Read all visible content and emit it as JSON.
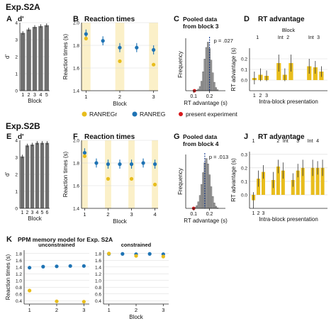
{
  "figure": {
    "exp_a": "Exp.S2A",
    "exp_b": "Exp.S2B",
    "legend_gold": "RANREGr",
    "legend_blue": "RANREG",
    "legend_red": "present experiment",
    "colors": {
      "gold": "#e8bd1c",
      "blue": "#1e73b4",
      "red": "#d7191c",
      "shade": "#fbf0c8",
      "bar_dark": "#6f6f6f",
      "hist": "#9a9a9a"
    }
  },
  "chart_data": [
    {
      "id": "A",
      "panel_label": "A",
      "type": "bar",
      "title": "d'",
      "ylabel": "d'",
      "xlabel": "Block",
      "categories": [
        "1",
        "2",
        "3",
        "4",
        "5"
      ],
      "values": [
        3.4,
        3.6,
        3.75,
        3.8,
        3.85
      ],
      "ylim": [
        0,
        4
      ],
      "yticks": [
        "0",
        "1",
        "2",
        "3",
        "4"
      ]
    },
    {
      "id": "B",
      "panel_label": "B",
      "type": "scatter",
      "title": "Reaction times",
      "ylabel": "Reaction times (s)",
      "xlabel": "Block",
      "xlim": [
        0.6,
        7.4
      ],
      "ylim": [
        1.4,
        2.0
      ],
      "xticks": [
        {
          "x": 1,
          "label": "1"
        },
        {
          "x": 4,
          "label": "2"
        },
        {
          "x": 7,
          "label": "3"
        }
      ],
      "yticks": [
        "1.4",
        "1.6",
        "1.8",
        "2.0"
      ],
      "shaded": [
        [
          0.6,
          1.4
        ],
        [
          3.6,
          4.4
        ],
        [
          6.6,
          7.4
        ]
      ],
      "series": [
        {
          "name": "RANREG",
          "color": "blue",
          "x": [
            1,
            2.5,
            4,
            5.5,
            7
          ],
          "y": [
            1.9,
            1.84,
            1.78,
            1.78,
            1.76
          ],
          "err": [
            0.04,
            0.04,
            0.04,
            0.04,
            0.04
          ]
        },
        {
          "name": "RANREGr",
          "color": "gold",
          "x": [
            1,
            4,
            7
          ],
          "y": [
            1.86,
            1.66,
            1.63
          ],
          "err": [
            0,
            0,
            0
          ]
        }
      ]
    },
    {
      "id": "C",
      "panel_label": "C",
      "type": "histogram",
      "title": "Pooled data",
      "subtitle": "from block 3",
      "ylabel": "Frequency",
      "xlabel": "RT advantage (s)",
      "xlim": [
        0.05,
        0.3
      ],
      "xticks": [
        {
          "x": 0.1,
          "label": "0.1"
        },
        {
          "x": 0.2,
          "label": "0.2"
        }
      ],
      "bins": [
        0.12,
        0.13,
        0.14,
        0.15,
        0.16,
        0.17,
        0.18,
        0.19,
        0.2,
        0.21,
        0.22,
        0.23,
        0.24,
        0.25
      ],
      "counts": [
        1,
        3,
        8,
        18,
        36,
        60,
        82,
        92,
        80,
        58,
        34,
        16,
        6,
        2
      ],
      "observed": 0.105,
      "mean": 0.2,
      "annotation": "p = .027"
    },
    {
      "id": "D",
      "panel_label": "D",
      "type": "bar",
      "title": "RT advantage",
      "ylabel": "RT advantage (s)",
      "xlabel": "Intra-block presentation",
      "toplabel": "Block",
      "groups": [
        {
          "label": "1",
          "x": 1.5
        },
        {
          "label": "Int",
          "x": 5.3
        },
        {
          "label": "2",
          "x": 6.5
        },
        {
          "label": "Int",
          "x": 10.3
        },
        {
          "label": "3",
          "x": 11.5
        }
      ],
      "categories": [
        "1",
        "2",
        "3"
      ],
      "x": [
        1,
        2,
        3,
        5,
        6,
        7,
        10,
        11,
        12
      ],
      "values": [
        0.02,
        0.05,
        0.04,
        0.16,
        0.05,
        0.16,
        0.13,
        0.12,
        0.08
      ],
      "err": [
        0.06,
        0.06,
        0.05,
        0.08,
        0.06,
        0.08,
        0.07,
        0.06,
        0.05
      ],
      "ylim": [
        -0.1,
        0.3
      ],
      "yticks": [
        "0.0",
        "0.1",
        "0.2"
      ]
    },
    {
      "id": "E",
      "panel_label": "E",
      "type": "bar",
      "title": "d'",
      "ylabel": "d'",
      "xlabel": "Block",
      "categories": [
        "1",
        "2",
        "3",
        "4",
        "5",
        "6"
      ],
      "values": [
        3.05,
        3.7,
        3.75,
        3.85,
        3.85,
        3.85
      ],
      "ylim": [
        0,
        4
      ],
      "yticks": [
        "0",
        "1",
        "2",
        "3",
        "4"
      ]
    },
    {
      "id": "F",
      "panel_label": "F",
      "type": "scatter",
      "title": "Reaction times",
      "ylabel": "Reaction times (s)",
      "xlabel": "Block",
      "xlim": [
        0.6,
        10.4
      ],
      "ylim": [
        1.4,
        2.0
      ],
      "xticks": [
        {
          "x": 1,
          "label": "1"
        },
        {
          "x": 4,
          "label": "2"
        },
        {
          "x": 7,
          "label": "3"
        },
        {
          "x": 10,
          "label": "4"
        }
      ],
      "yticks": [
        "1.4",
        "1.6",
        "1.8",
        "2.0"
      ],
      "shaded": [
        [
          0.6,
          1.4
        ],
        [
          3.6,
          4.4
        ],
        [
          6.6,
          7.4
        ],
        [
          9.6,
          10.4
        ]
      ],
      "series": [
        {
          "name": "RANREG",
          "color": "blue",
          "x": [
            1,
            2.5,
            4,
            5.5,
            7,
            8.5,
            10
          ],
          "y": [
            1.89,
            1.8,
            1.79,
            1.79,
            1.79,
            1.8,
            1.79
          ],
          "err": [
            0.04,
            0.04,
            0.04,
            0.04,
            0.04,
            0.04,
            0.04
          ]
        },
        {
          "name": "RANREGr",
          "color": "gold",
          "x": [
            1,
            4,
            7,
            10
          ],
          "y": [
            1.86,
            1.66,
            1.66,
            1.61
          ],
          "err": [
            0,
            0,
            0,
            0
          ]
        }
      ]
    },
    {
      "id": "G",
      "panel_label": "G",
      "type": "histogram",
      "title": "Pooled data",
      "subtitle": "from block 4",
      "ylabel": "Frequency",
      "xlabel": "RT advantage (s)",
      "xlim": [
        0.05,
        0.3
      ],
      "xticks": [
        {
          "x": 0.1,
          "label": "0.1"
        },
        {
          "x": 0.2,
          "label": "0.2"
        }
      ],
      "bins": [
        0.11,
        0.12,
        0.13,
        0.14,
        0.15,
        0.16,
        0.17,
        0.18,
        0.19,
        0.2,
        0.21,
        0.22,
        0.23,
        0.24,
        0.25
      ],
      "counts": [
        2,
        5,
        12,
        24,
        44,
        66,
        84,
        92,
        82,
        62,
        40,
        22,
        10,
        4,
        1
      ],
      "observed": 0.1,
      "mean": 0.17,
      "annotation": "p = .013"
    },
    {
      "id": "J",
      "panel_label": "J",
      "type": "bar",
      "title": "RT advantage",
      "ylabel": "RT advantage (s)",
      "xlabel": "Intra-block presentation",
      "groups": [
        {
          "label": "1",
          "x": 1
        },
        {
          "label": "2",
          "x": 6
        },
        {
          "label": "Int",
          "x": 7.5
        },
        {
          "label": "3",
          "x": 10
        },
        {
          "label": "Int",
          "x": 12.5
        },
        {
          "label": "4",
          "x": 14
        }
      ],
      "categories": [
        "1",
        "2",
        "3"
      ],
      "x": [
        1,
        2,
        3,
        5,
        6,
        7,
        9,
        10,
        11,
        13,
        14,
        15
      ],
      "values": [
        -0.04,
        0.12,
        0.17,
        0.11,
        0.21,
        0.18,
        0.11,
        0.18,
        0.2,
        0.2,
        0.2,
        0.2
      ],
      "err": [
        0.06,
        0.06,
        0.05,
        0.06,
        0.05,
        0.06,
        0.05,
        0.05,
        0.06,
        0.06,
        0.05,
        0.06
      ],
      "ylim": [
        -0.1,
        0.32
      ],
      "yticks": [
        "0.0",
        "0.1",
        "0.2",
        "0.3"
      ]
    },
    {
      "id": "K1",
      "panel_label": "K",
      "type": "scatter",
      "title": "PPM memory model for Exp. S2A",
      "subtitle": "unconstrained",
      "ylabel": "Reaction times (s)",
      "xlabel": "",
      "xlim": [
        0.8,
        3.2
      ],
      "ylim": [
        0.3,
        1.9
      ],
      "xticks": [
        {
          "x": 1,
          "label": "1"
        },
        {
          "x": 2,
          "label": "2"
        },
        {
          "x": 3,
          "label": "3"
        }
      ],
      "yticks": [
        "0.4",
        "0.6",
        "0.8",
        "1.0",
        "1.2",
        "1.4",
        "1.6",
        "1.8"
      ],
      "series": [
        {
          "name": "RANREG",
          "color": "blue",
          "x": [
            1,
            1.5,
            2,
            2.5,
            3
          ],
          "y": [
            1.38,
            1.41,
            1.42,
            1.43,
            1.43
          ]
        },
        {
          "name": "RANREGr",
          "color": "gold",
          "x": [
            1,
            2,
            3
          ],
          "y": [
            0.7,
            0.38,
            0.37
          ]
        }
      ]
    },
    {
      "id": "K2",
      "panel_label": "",
      "type": "scatter",
      "title": "",
      "subtitle": "constrained",
      "ylabel": "",
      "xlabel": "Block",
      "xlim": [
        0.8,
        3.2
      ],
      "ylim": [
        0.3,
        1.9
      ],
      "xticks": [
        {
          "x": 1,
          "label": "1"
        },
        {
          "x": 2,
          "label": "2"
        },
        {
          "x": 3,
          "label": "3"
        }
      ],
      "yticks": [
        "0.4",
        "0.6",
        "0.8",
        "1.0",
        "1.2",
        "1.4",
        "1.6",
        "1.8"
      ],
      "series": [
        {
          "name": "RANREG",
          "color": "blue",
          "x": [
            1,
            1.5,
            2,
            2.5,
            3
          ],
          "y": [
            1.79,
            1.79,
            1.78,
            1.79,
            1.78
          ]
        },
        {
          "name": "RANREGr",
          "color": "gold",
          "x": [
            1,
            2,
            3
          ],
          "y": [
            1.8,
            1.73,
            1.71
          ]
        }
      ]
    }
  ]
}
